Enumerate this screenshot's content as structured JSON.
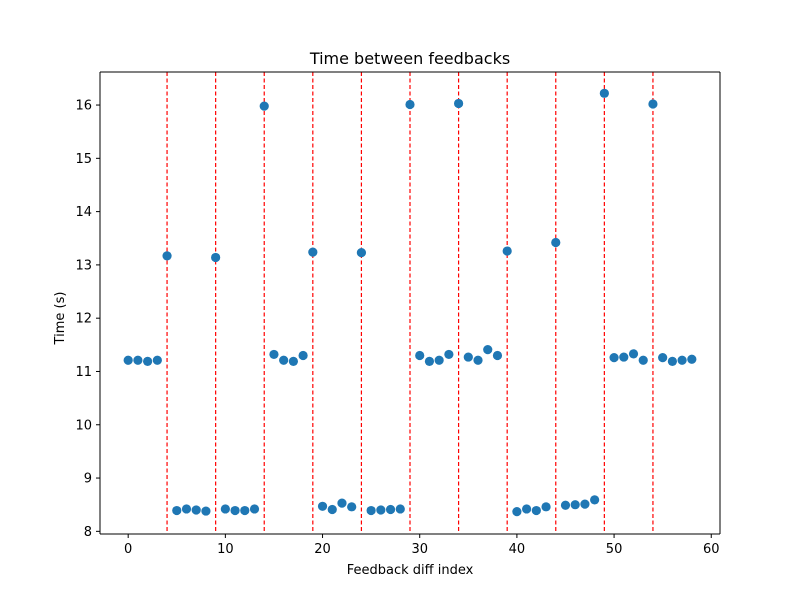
{
  "chart_data": {
    "type": "scatter",
    "title": "Time between feedbacks",
    "xlabel": "Feedback diff index",
    "ylabel": "Time (s)",
    "xlim": [
      -2.9,
      60.9
    ],
    "ylim": [
      7.95,
      16.62
    ],
    "xticks": [
      0,
      10,
      20,
      30,
      40,
      50,
      60
    ],
    "yticks": [
      8,
      9,
      10,
      11,
      12,
      13,
      14,
      15,
      16
    ],
    "grid": false,
    "marker_color": "#1f77b4",
    "vline_color": "#ff0000",
    "vline_style": "dashed",
    "vlines_x": [
      4,
      9,
      14,
      19,
      24,
      29,
      34,
      39,
      44,
      49,
      54
    ],
    "x": [
      0,
      1,
      2,
      3,
      4,
      5,
      6,
      7,
      8,
      9,
      10,
      11,
      12,
      13,
      14,
      15,
      16,
      17,
      18,
      19,
      20,
      21,
      22,
      23,
      24,
      25,
      26,
      27,
      28,
      29,
      30,
      31,
      32,
      33,
      34,
      35,
      36,
      37,
      38,
      39,
      40,
      41,
      42,
      43,
      44,
      45,
      46,
      47,
      48,
      49,
      50,
      51,
      52,
      53,
      54,
      55,
      56,
      57,
      58
    ],
    "y": [
      11.21,
      11.21,
      11.19,
      11.21,
      13.17,
      8.39,
      8.42,
      8.4,
      8.38,
      13.14,
      8.42,
      8.39,
      8.39,
      8.42,
      15.98,
      11.32,
      11.21,
      11.19,
      11.3,
      13.24,
      8.47,
      8.41,
      8.53,
      8.46,
      13.23,
      8.39,
      8.4,
      8.41,
      8.42,
      16.01,
      11.3,
      11.19,
      11.21,
      11.32,
      16.03,
      11.27,
      11.21,
      11.41,
      11.3,
      13.26,
      8.37,
      8.42,
      8.39,
      8.46,
      13.42,
      8.49,
      8.5,
      8.51,
      8.59,
      16.22,
      11.26,
      11.27,
      11.33,
      11.21,
      16.02,
      11.26,
      11.19,
      11.21,
      11.23
    ]
  }
}
